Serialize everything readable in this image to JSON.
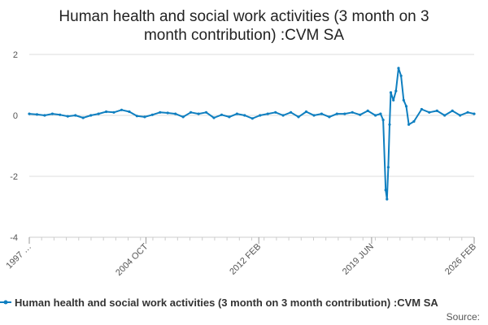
{
  "chart_data": {
    "type": "line",
    "title_lines": [
      "Human health and social work activities (3 month on 3",
      "month contribution) :CVM SA"
    ],
    "xlabel": "",
    "ylabel": "",
    "x_tick_labels": [
      "1997 …",
      "2004 OCT",
      "2012 FEB",
      "2019 JUN",
      "2026 FEB"
    ],
    "x_tick_dates": [
      "1997-03",
      "2004-10",
      "2012-02",
      "2019-06",
      "2026-02"
    ],
    "x_range": [
      "1997-03",
      "2026-02"
    ],
    "ylim": [
      -4,
      2
    ],
    "y_ticks": [
      2,
      0,
      -2,
      -4
    ],
    "grid": "horizontal",
    "legend_position": "bottom",
    "colors": {
      "series": "#0f7fc0",
      "grid": "#dddddd",
      "axis": "#cccccc"
    },
    "series": [
      {
        "name": "Human health and social work activities (3 month on 3 month contribution) :CVM SA",
        "points": [
          [
            "1997-03",
            0.05
          ],
          [
            "1997-09",
            0.03
          ],
          [
            "1998-03",
            0.0
          ],
          [
            "1998-09",
            0.05
          ],
          [
            "1999-03",
            0.02
          ],
          [
            "1999-09",
            -0.03
          ],
          [
            "2000-03",
            0.0
          ],
          [
            "2000-09",
            -0.08
          ],
          [
            "2001-03",
            0.0
          ],
          [
            "2001-09",
            0.05
          ],
          [
            "2002-03",
            0.12
          ],
          [
            "2002-09",
            0.1
          ],
          [
            "2003-03",
            0.18
          ],
          [
            "2003-09",
            0.12
          ],
          [
            "2004-03",
            -0.02
          ],
          [
            "2004-09",
            -0.05
          ],
          [
            "2005-03",
            0.02
          ],
          [
            "2005-09",
            0.1
          ],
          [
            "2006-03",
            0.08
          ],
          [
            "2006-09",
            0.05
          ],
          [
            "2007-03",
            -0.05
          ],
          [
            "2007-09",
            0.1
          ],
          [
            "2008-03",
            0.05
          ],
          [
            "2008-09",
            0.1
          ],
          [
            "2009-03",
            -0.08
          ],
          [
            "2009-09",
            0.02
          ],
          [
            "2010-03",
            -0.05
          ],
          [
            "2010-09",
            0.05
          ],
          [
            "2011-03",
            0.0
          ],
          [
            "2011-09",
            -0.1
          ],
          [
            "2012-03",
            0.0
          ],
          [
            "2012-09",
            0.05
          ],
          [
            "2013-03",
            0.1
          ],
          [
            "2013-09",
            0.0
          ],
          [
            "2014-03",
            0.1
          ],
          [
            "2014-09",
            -0.05
          ],
          [
            "2015-03",
            0.12
          ],
          [
            "2015-09",
            0.0
          ],
          [
            "2016-03",
            0.05
          ],
          [
            "2016-09",
            -0.05
          ],
          [
            "2017-03",
            0.05
          ],
          [
            "2017-09",
            0.05
          ],
          [
            "2018-03",
            0.1
          ],
          [
            "2018-09",
            0.02
          ],
          [
            "2019-03",
            0.15
          ],
          [
            "2019-09",
            0.0
          ],
          [
            "2020-01",
            0.05
          ],
          [
            "2020-03",
            -0.15
          ],
          [
            "2020-05",
            -2.45
          ],
          [
            "2020-06",
            -2.75
          ],
          [
            "2020-07",
            -1.7
          ],
          [
            "2020-08",
            -0.3
          ],
          [
            "2020-09",
            0.75
          ],
          [
            "2020-11",
            0.5
          ],
          [
            "2021-01",
            0.8
          ],
          [
            "2021-03",
            1.55
          ],
          [
            "2021-05",
            1.3
          ],
          [
            "2021-07",
            0.5
          ],
          [
            "2021-09",
            0.3
          ],
          [
            "2021-11",
            -0.3
          ],
          [
            "2022-03",
            -0.2
          ],
          [
            "2022-09",
            0.2
          ],
          [
            "2023-03",
            0.1
          ],
          [
            "2023-09",
            0.15
          ],
          [
            "2024-03",
            0.0
          ],
          [
            "2024-09",
            0.15
          ],
          [
            "2025-03",
            0.0
          ],
          [
            "2025-09",
            0.1
          ],
          [
            "2026-02",
            0.05
          ]
        ]
      }
    ],
    "source_label": "Source:"
  }
}
